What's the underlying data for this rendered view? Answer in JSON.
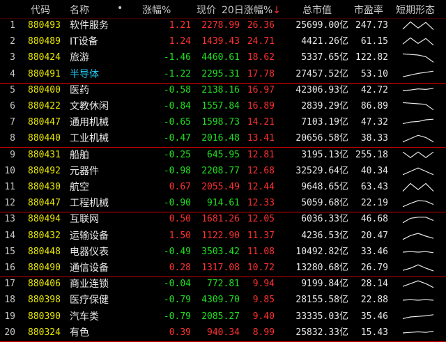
{
  "header": {
    "code": "代码",
    "name": "名称",
    "dot": "•",
    "change_pct": "涨幅%",
    "price": "现价",
    "change_20d": "20日涨幅%",
    "sort_arrow": "↓",
    "market_cap": "总市值",
    "pe": "市盈率",
    "trend": "短期形态"
  },
  "colors": {
    "up": "#ff3030",
    "down": "#20e020",
    "code": "#e8e800",
    "highlight_name": "#20c8f0"
  },
  "rows": [
    {
      "idx": "1",
      "code": "880493",
      "name": "软件服务",
      "chg": "1.21",
      "price": "2278.99",
      "d20": "26.36",
      "mcap": "25699.00亿",
      "pe": "247.73",
      "dir": "up",
      "trend": [
        0.2,
        0.85,
        0.3,
        0.8,
        0.15
      ]
    },
    {
      "idx": "2",
      "code": "880489",
      "name": "IT设备",
      "chg": "1.24",
      "price": "1439.43",
      "d20": "24.71",
      "mcap": "4421.26亿",
      "pe": "61.15",
      "dir": "up",
      "trend": [
        0.3,
        0.85,
        0.35,
        0.8,
        0.2
      ]
    },
    {
      "idx": "3",
      "code": "880424",
      "name": "旅游",
      "chg": "-1.46",
      "price": "4460.61",
      "d20": "18.62",
      "mcap": "5337.65亿",
      "pe": "122.82",
      "dir": "down",
      "trend": [
        0.85,
        0.8,
        0.75,
        0.6,
        0.1
      ]
    },
    {
      "idx": "4",
      "code": "880491",
      "name": "半导体",
      "chg": "-1.22",
      "price": "2295.31",
      "d20": "17.78",
      "mcap": "27457.52亿",
      "pe": "53.10",
      "dir": "down",
      "highlight": true,
      "trend": [
        0.3,
        0.45,
        0.6,
        0.7,
        0.8
      ]
    },
    {
      "idx": "5",
      "code": "880400",
      "name": "医药",
      "chg": "-0.58",
      "price": "2138.16",
      "d20": "16.97",
      "mcap": "42306.93亿",
      "pe": "42.72",
      "dir": "down",
      "trend": [
        0.5,
        0.55,
        0.65,
        0.6,
        0.7
      ]
    },
    {
      "idx": "6",
      "code": "880422",
      "name": "文教休闲",
      "chg": "-0.84",
      "price": "1557.84",
      "d20": "16.89",
      "mcap": "2839.29亿",
      "pe": "86.89",
      "dir": "down",
      "trend": [
        0.85,
        0.8,
        0.75,
        0.7,
        0.2
      ]
    },
    {
      "idx": "7",
      "code": "880447",
      "name": "通用机械",
      "chg": "-0.65",
      "price": "1598.73",
      "d20": "14.21",
      "mcap": "7103.19亿",
      "pe": "47.32",
      "dir": "down",
      "trend": [
        0.4,
        0.55,
        0.6,
        0.75,
        0.8
      ]
    },
    {
      "idx": "8",
      "code": "880440",
      "name": "工业机械",
      "chg": "-0.47",
      "price": "2016.48",
      "d20": "13.41",
      "mcap": "20656.58亿",
      "pe": "38.33",
      "dir": "down",
      "trend": [
        0.2,
        0.5,
        0.8,
        0.6,
        0.2
      ]
    },
    {
      "idx": "9",
      "code": "880431",
      "name": "船舶",
      "chg": "-0.25",
      "price": "645.95",
      "d20": "12.81",
      "mcap": "3195.13亿",
      "pe": "255.18",
      "dir": "down",
      "trend": [
        0.8,
        0.3,
        0.8,
        0.3,
        0.8
      ]
    },
    {
      "idx": "10",
      "code": "880492",
      "name": "元器件",
      "chg": "-0.98",
      "price": "2208.77",
      "d20": "12.68",
      "mcap": "32529.64亿",
      "pe": "40.34",
      "dir": "down",
      "trend": [
        0.2,
        0.5,
        0.8,
        0.5,
        0.2
      ]
    },
    {
      "idx": "11",
      "code": "880430",
      "name": "航空",
      "chg": "0.67",
      "price": "2055.49",
      "d20": "12.44",
      "mcap": "9648.65亿",
      "pe": "63.43",
      "dir": "up",
      "trend": [
        0.15,
        0.85,
        0.3,
        0.85,
        0.15
      ]
    },
    {
      "idx": "12",
      "code": "880447",
      "name": "工程机械",
      "chg": "-0.90",
      "price": "914.61",
      "d20": "12.33",
      "mcap": "5059.68亿",
      "pe": "22.19",
      "dir": "down",
      "trend": [
        0.2,
        0.5,
        0.75,
        0.7,
        0.4
      ]
    },
    {
      "idx": "13",
      "code": "880494",
      "name": "互联网",
      "chg": "0.50",
      "price": "1681.26",
      "d20": "12.05",
      "mcap": "6036.33亿",
      "pe": "46.68",
      "dir": "up",
      "trend": [
        0.2,
        0.6,
        0.7,
        0.7,
        0.4
      ]
    },
    {
      "idx": "14",
      "code": "880432",
      "name": "运输设备",
      "chg": "1.50",
      "price": "1122.90",
      "d20": "11.37",
      "mcap": "4236.53亿",
      "pe": "20.47",
      "dir": "up",
      "trend": [
        0.2,
        0.55,
        0.75,
        0.5,
        0.3
      ]
    },
    {
      "idx": "15",
      "code": "880448",
      "name": "电器仪表",
      "chg": "-0.49",
      "price": "3503.42",
      "d20": "11.08",
      "mcap": "10492.82亿",
      "pe": "33.46",
      "dir": "down",
      "trend": [
        0.5,
        0.55,
        0.5,
        0.55,
        0.45
      ]
    },
    {
      "idx": "16",
      "code": "880490",
      "name": "通信设备",
      "chg": "0.28",
      "price": "1317.08",
      "d20": "10.72",
      "mcap": "13280.68亿",
      "pe": "26.79",
      "dir": "up",
      "trend": [
        0.3,
        0.5,
        0.8,
        0.5,
        0.25
      ]
    },
    {
      "idx": "17",
      "code": "880406",
      "name": "商业连锁",
      "chg": "-0.04",
      "price": "772.81",
      "d20": "9.94",
      "mcap": "9199.84亿",
      "pe": "28.14",
      "dir": "down",
      "trend": [
        0.3,
        0.55,
        0.8,
        0.55,
        0.2
      ]
    },
    {
      "idx": "18",
      "code": "880398",
      "name": "医疗保健",
      "chg": "-0.79",
      "price": "4309.70",
      "d20": "9.85",
      "mcap": "28155.58亿",
      "pe": "22.88",
      "dir": "down",
      "trend": [
        0.5,
        0.55,
        0.5,
        0.55,
        0.5
      ]
    },
    {
      "idx": "19",
      "code": "880390",
      "name": "汽车类",
      "chg": "-0.79",
      "price": "2085.27",
      "d20": "9.40",
      "mcap": "33335.03亿",
      "pe": "35.46",
      "dir": "down",
      "trend": [
        0.35,
        0.5,
        0.55,
        0.6,
        0.7
      ]
    },
    {
      "idx": "20",
      "code": "880324",
      "name": "有色",
      "chg": "0.39",
      "price": "940.34",
      "d20": "8.99",
      "mcap": "25832.33亿",
      "pe": "15.43",
      "dir": "up",
      "trend": [
        0.5,
        0.55,
        0.6,
        0.55,
        0.65
      ]
    }
  ]
}
